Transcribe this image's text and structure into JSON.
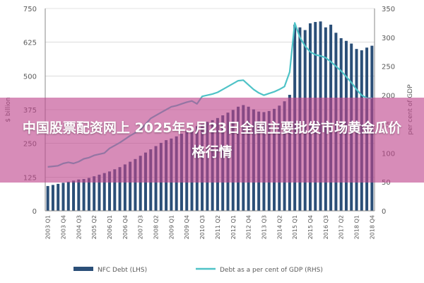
{
  "banner": {
    "text": "中国股票配资网上 2025年5月23日全国主要批发市场黄金瓜价格行情"
  },
  "chart_data": {
    "type": "bar+line",
    "title": "",
    "categories": [
      "2003 Q1",
      "2003 Q2",
      "2003 Q3",
      "2003 Q4",
      "2004 Q1",
      "2004 Q2",
      "2004 Q3",
      "2004 Q4",
      "2005 Q1",
      "2005 Q2",
      "2005 Q3",
      "2005 Q4",
      "2006 Q1",
      "2006 Q2",
      "2006 Q3",
      "2006 Q4",
      "2007 Q1",
      "2007 Q2",
      "2007 Q3",
      "2007 Q4",
      "2008 Q1",
      "2008 Q2",
      "2008 Q3",
      "2008 Q4",
      "2009 Q1",
      "2009 Q2",
      "2009 Q3",
      "2009 Q4",
      "2010 Q1",
      "2010 Q2",
      "2010 Q3",
      "2010 Q4",
      "2011 Q1",
      "2011 Q2",
      "2011 Q3",
      "2011 Q4",
      "2012 Q1",
      "2012 Q2",
      "2012 Q3",
      "2012 Q4",
      "2013 Q1",
      "2013 Q2",
      "2013 Q3",
      "2013 Q4",
      "2014 Q1",
      "2014 Q2",
      "2014 Q3",
      "2014 Q4",
      "2015 Q1",
      "2015 Q2",
      "2015 Q3",
      "2015 Q4",
      "2016 Q1",
      "2016 Q2",
      "2016 Q3",
      "2016 Q4",
      "2017 Q1",
      "2017 Q2",
      "2017 Q3",
      "2017 Q4",
      "2018 Q1",
      "2018 Q2",
      "2018 Q3",
      "2018 Q4"
    ],
    "x_tick_labels": [
      "2003 Q1",
      "2003 Q4",
      "2004 Q3",
      "2005 Q2",
      "2006 Q1",
      "2006 Q4",
      "2007 Q3",
      "2008 Q2",
      "2009 Q1",
      "2009 Q4",
      "2010 Q3",
      "2011 Q2",
      "2012 Q1",
      "2012 Q4",
      "2013 Q3",
      "2014 Q2",
      "2015 Q1",
      "2015 Q4",
      "2016 Q3",
      "2017 Q2",
      "2018 Q1",
      "2018 Q4"
    ],
    "series": [
      {
        "name": "NFC Debt (LHS)",
        "type": "bar",
        "axis": "left",
        "values": [
          92,
          96,
          100,
          104,
          108,
          112,
          116,
          118,
          122,
          128,
          134,
          140,
          146,
          154,
          162,
          172,
          182,
          192,
          204,
          216,
          228,
          240,
          252,
          262,
          268,
          276,
          286,
          296,
          304,
          314,
          322,
          330,
          336,
          344,
          354,
          364,
          374,
          386,
          392,
          386,
          376,
          368,
          366,
          370,
          378,
          390,
          406,
          430,
          690,
          680,
          670,
          695,
          700,
          702,
          680,
          690,
          660,
          640,
          630,
          620,
          600,
          595,
          605,
          612
        ]
      },
      {
        "name": "Debt as a per cent of GDP (RHS)",
        "type": "line",
        "axis": "right",
        "values": [
          76,
          77,
          78,
          82,
          84,
          82,
          85,
          90,
          92,
          96,
          98,
          100,
          108,
          113,
          118,
          124,
          130,
          135,
          140,
          150,
          160,
          165,
          170,
          175,
          180,
          182,
          185,
          188,
          190,
          185,
          198,
          200,
          202,
          205,
          210,
          215,
          220,
          225,
          226,
          218,
          210,
          204,
          200,
          203,
          206,
          210,
          215,
          240,
          325,
          300,
          285,
          275,
          270,
          268,
          265,
          258,
          250,
          242,
          232,
          222,
          210,
          200,
          195,
          195
        ]
      }
    ],
    "y_left": {
      "ticks": [
        0,
        125,
        250,
        375,
        500,
        625,
        750
      ],
      "ylim": [
        0,
        750
      ],
      "label": "$ billion"
    },
    "y_right": {
      "ticks": [
        0,
        50,
        100,
        150,
        200,
        250,
        300,
        350
      ],
      "ylim": [
        0,
        350
      ],
      "label": "per cent of GDP"
    },
    "legend": {
      "position": "bottom",
      "items": [
        "NFC Debt (LHS)",
        "Debt as a per cent of GDP (RHS)"
      ]
    },
    "colors": {
      "bar": "#2b4f78",
      "line": "#4fc3c7",
      "axis": "#8a8a8a",
      "grid": "#c8c8c8"
    }
  }
}
